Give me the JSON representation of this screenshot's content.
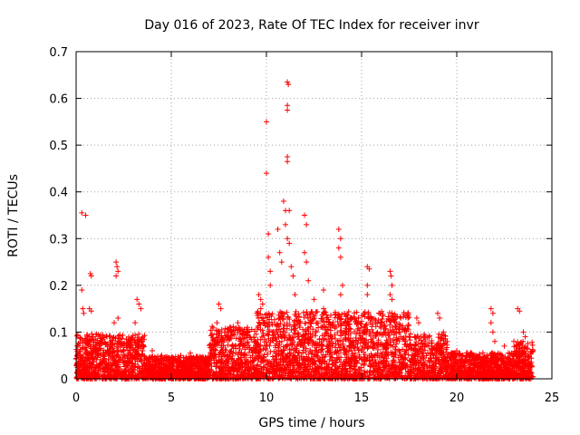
{
  "chart_data": {
    "type": "scatter",
    "title": "Day 016 of 2023, Rate Of TEC Index for receiver invr",
    "xlabel": "GPS time / hours",
    "ylabel": "ROTI / TECUs",
    "xlim": [
      0,
      25
    ],
    "ylim": [
      0,
      0.7
    ],
    "x_ticks": [
      0,
      5,
      10,
      15,
      20,
      25
    ],
    "y_ticks": [
      0,
      0.1,
      0.2,
      0.3,
      0.4,
      0.5,
      0.6,
      0.7
    ],
    "x_tick_labels": [
      "0",
      "5",
      "10",
      "15",
      "20",
      "25"
    ],
    "y_tick_labels": [
      "0",
      "0.1",
      "0.2",
      "0.3",
      "0.4",
      "0.5",
      "0.6",
      "0.7"
    ],
    "grid": true,
    "marker": "+",
    "color": "#ff0000",
    "series": [
      {
        "name": "ROTI",
        "points": [
          [
            0.3,
            0.355
          ],
          [
            0.5,
            0.35
          ],
          [
            0.75,
            0.225
          ],
          [
            0.8,
            0.22
          ],
          [
            0.3,
            0.19
          ],
          [
            0.35,
            0.15
          ],
          [
            0.4,
            0.14
          ],
          [
            0.7,
            0.15
          ],
          [
            0.8,
            0.145
          ],
          [
            2.1,
            0.25
          ],
          [
            2.15,
            0.24
          ],
          [
            2.2,
            0.23
          ],
          [
            2.1,
            0.22
          ],
          [
            2.0,
            0.12
          ],
          [
            2.2,
            0.13
          ],
          [
            3.2,
            0.17
          ],
          [
            3.3,
            0.16
          ],
          [
            3.4,
            0.15
          ],
          [
            3.1,
            0.12
          ],
          [
            4.0,
            0.06
          ],
          [
            4.5,
            0.05
          ],
          [
            5.5,
            0.05
          ],
          [
            6.0,
            0.055
          ],
          [
            6.5,
            0.045
          ],
          [
            7.5,
            0.16
          ],
          [
            7.6,
            0.15
          ],
          [
            7.4,
            0.12
          ],
          [
            7.8,
            0.1
          ],
          [
            8.0,
            0.09
          ],
          [
            8.5,
            0.12
          ],
          [
            9.0,
            0.11
          ],
          [
            9.5,
            0.14
          ],
          [
            9.6,
            0.18
          ],
          [
            9.7,
            0.17
          ],
          [
            9.8,
            0.16
          ],
          [
            9.7,
            0.15
          ],
          [
            10.0,
            0.55
          ],
          [
            10.0,
            0.44
          ],
          [
            10.1,
            0.31
          ],
          [
            10.1,
            0.26
          ],
          [
            10.2,
            0.23
          ],
          [
            10.2,
            0.2
          ],
          [
            10.6,
            0.32
          ],
          [
            10.7,
            0.27
          ],
          [
            10.8,
            0.25
          ],
          [
            10.9,
            0.38
          ],
          [
            11.0,
            0.36
          ],
          [
            11.0,
            0.33
          ],
          [
            11.1,
            0.3
          ],
          [
            11.1,
            0.635
          ],
          [
            11.15,
            0.63
          ],
          [
            11.1,
            0.585
          ],
          [
            11.1,
            0.575
          ],
          [
            11.1,
            0.475
          ],
          [
            11.1,
            0.465
          ],
          [
            11.2,
            0.36
          ],
          [
            11.2,
            0.29
          ],
          [
            11.3,
            0.24
          ],
          [
            11.4,
            0.22
          ],
          [
            11.5,
            0.18
          ],
          [
            12.0,
            0.35
          ],
          [
            12.1,
            0.33
          ],
          [
            12.0,
            0.27
          ],
          [
            12.1,
            0.25
          ],
          [
            12.2,
            0.21
          ],
          [
            12.5,
            0.17
          ],
          [
            13.0,
            0.15
          ],
          [
            13.0,
            0.19
          ],
          [
            13.8,
            0.32
          ],
          [
            13.9,
            0.3
          ],
          [
            13.8,
            0.28
          ],
          [
            13.9,
            0.26
          ],
          [
            14.0,
            0.2
          ],
          [
            13.9,
            0.18
          ],
          [
            14.5,
            0.13
          ],
          [
            14.8,
            0.12
          ],
          [
            15.0,
            0.11
          ],
          [
            15.3,
            0.24
          ],
          [
            15.4,
            0.235
          ],
          [
            15.3,
            0.2
          ],
          [
            15.3,
            0.18
          ],
          [
            16.0,
            0.12
          ],
          [
            16.5,
            0.23
          ],
          [
            16.55,
            0.22
          ],
          [
            16.6,
            0.2
          ],
          [
            16.5,
            0.18
          ],
          [
            16.6,
            0.17
          ],
          [
            17.0,
            0.1
          ],
          [
            17.5,
            0.09
          ],
          [
            17.9,
            0.13
          ],
          [
            18.0,
            0.12
          ],
          [
            19.0,
            0.14
          ],
          [
            19.1,
            0.13
          ],
          [
            19.3,
            0.1
          ],
          [
            19.5,
            0.08
          ],
          [
            20.0,
            0.06
          ],
          [
            20.5,
            0.05
          ],
          [
            21.0,
            0.05
          ],
          [
            21.8,
            0.15
          ],
          [
            21.9,
            0.14
          ],
          [
            21.8,
            0.12
          ],
          [
            21.9,
            0.1
          ],
          [
            22.0,
            0.08
          ],
          [
            22.5,
            0.07
          ],
          [
            23.0,
            0.08
          ],
          [
            23.2,
            0.15
          ],
          [
            23.3,
            0.145
          ],
          [
            23.5,
            0.1
          ],
          [
            23.6,
            0.09
          ],
          [
            24.0,
            0.06
          ]
        ]
      }
    ]
  }
}
